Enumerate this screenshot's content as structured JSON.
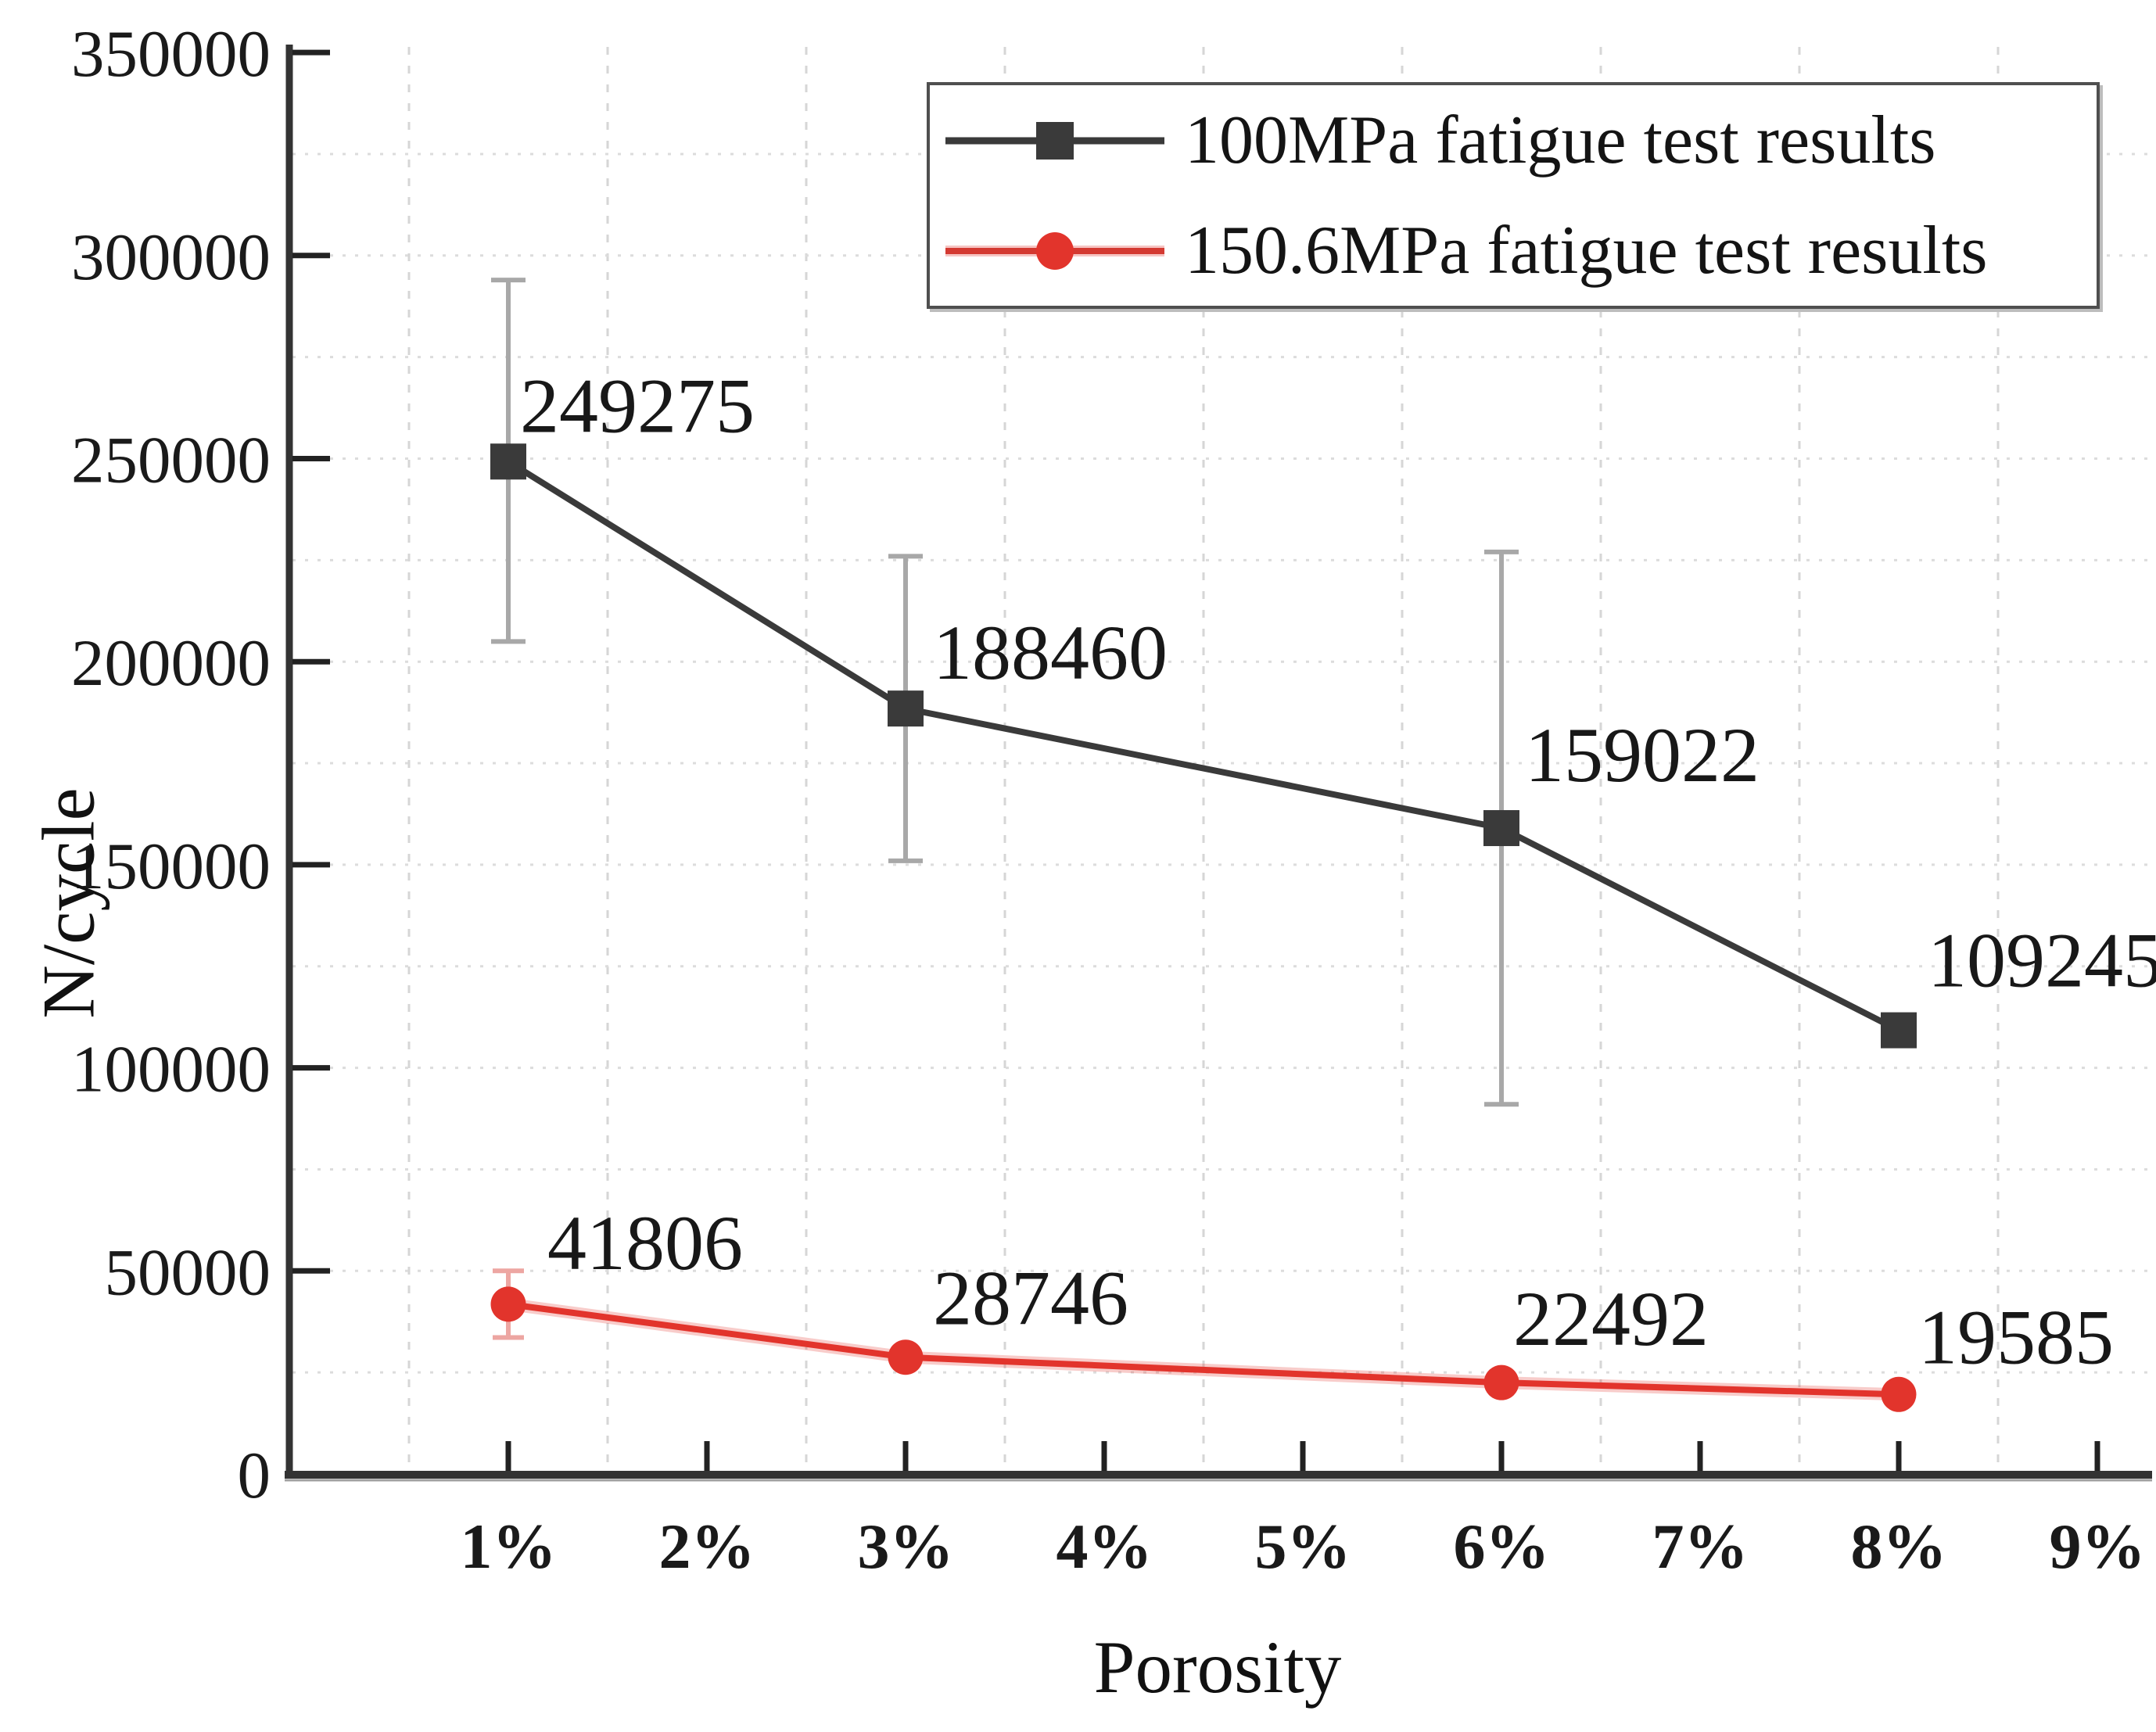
{
  "chart_data": {
    "type": "line",
    "title": "",
    "xlabel": "Porosity",
    "ylabel": "N/cycle",
    "x_tick_labels": [
      "1%",
      "2%",
      "3%",
      "4%",
      "5%",
      "6%",
      "7%",
      "8%",
      "9%"
    ],
    "x_tick_values": [
      1,
      2,
      3,
      4,
      5,
      6,
      7,
      8,
      9
    ],
    "y_tick_values": [
      0,
      50000,
      100000,
      150000,
      200000,
      250000,
      300000,
      350000
    ],
    "ylim": [
      0,
      350000
    ],
    "xlim": [
      -0.1,
      9.27
    ],
    "grid": {
      "style": "dotted",
      "vertical_gridlines_at_percent": [
        0.5,
        1.5,
        2.5,
        3.5,
        4.5,
        5.5,
        6.5,
        7.5,
        8.5
      ],
      "horizontal_gridline_step": 25000,
      "gridline_color": "#d6d6d6"
    },
    "legend": {
      "position": "top-right",
      "border": true
    },
    "axis_color": "#333333",
    "tick_label_color": "#1a1a1a",
    "series": [
      {
        "name": "100MPa fatigue test results",
        "color": "#3a3a3a",
        "marker": "square",
        "marker_size": 46,
        "x": [
          1,
          3,
          6,
          8
        ],
        "values": [
          249275,
          188460,
          159022,
          109245
        ],
        "data_labels": [
          "249275",
          "188460",
          "159022",
          "109245"
        ],
        "error_plus": [
          44700,
          37500,
          68000,
          0
        ],
        "error_minus": [
          44300,
          37500,
          68000,
          0
        ],
        "error_color": "#a8a8a8",
        "label_offsets": [
          [
            15,
            -38
          ],
          [
            35,
            -38
          ],
          [
            30,
            -60
          ],
          [
            37,
            -56
          ]
        ]
      },
      {
        "name": "150.6MPa fatigue test results",
        "color": "#e2342c",
        "marker": "circle",
        "marker_size": 45,
        "x": [
          1,
          3,
          6,
          8
        ],
        "values": [
          41806,
          28746,
          22492,
          19585
        ],
        "data_labels": [
          "41806",
          "28746",
          "22492",
          "19585"
        ],
        "error_plus": [
          8200,
          0,
          0,
          0
        ],
        "error_minus": [
          8200,
          0,
          0,
          0
        ],
        "error_color": "#eda6a2",
        "label_offsets": [
          [
            50,
            -45
          ],
          [
            35,
            -42
          ],
          [
            15,
            -48
          ],
          [
            25,
            -40
          ]
        ]
      }
    ]
  }
}
